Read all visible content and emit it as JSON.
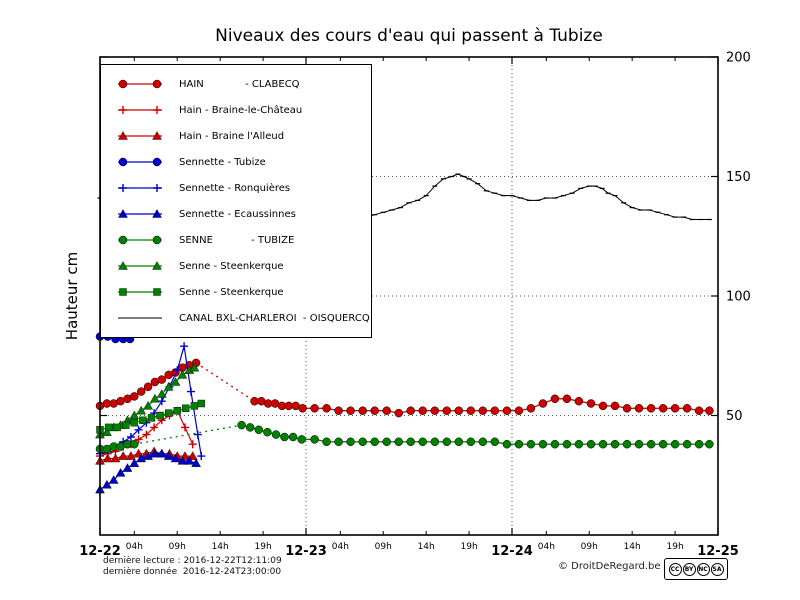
{
  "title": "Niveaux des cours d'eau qui passent à Tubize",
  "ylabel": "Hauteur cm",
  "footer": {
    "last_read": "dernière lecture : 2016-12-22T12:11:09",
    "last_data": "dernière donnée  2016-12-24T23:00:00",
    "copyright": "© DroitDeRegard.be",
    "license": {
      "name": "CC BY-NC-SA",
      "icons": [
        "CC",
        "BY",
        "NC",
        "SA"
      ]
    }
  },
  "chart_data": {
    "type": "line",
    "title": "Niveaux des cours d'eau qui passent à Tubize",
    "xlabel": "",
    "ylabel": "Hauteur cm",
    "ylim": [
      0,
      200
    ],
    "yticks": [
      50,
      100,
      150,
      200
    ],
    "xlim_hours": [
      0,
      72
    ],
    "grid": {
      "h_dotted": [
        50,
        100,
        150
      ],
      "v_dotted": [
        24,
        48
      ]
    },
    "legend_position": "upper-left",
    "day_ticks": [
      {
        "t": 0,
        "label": "12-22"
      },
      {
        "t": 24,
        "label": "12-23"
      },
      {
        "t": 48,
        "label": "12-24"
      },
      {
        "t": 72,
        "label": "12-25"
      }
    ],
    "hour_ticks": [
      {
        "t": 4,
        "label": "04h"
      },
      {
        "t": 9,
        "label": "09h"
      },
      {
        "t": 14,
        "label": "14h"
      },
      {
        "t": 19,
        "label": "19h"
      },
      {
        "t": 28,
        "label": "04h"
      },
      {
        "t": 33,
        "label": "09h"
      },
      {
        "t": 38,
        "label": "14h"
      },
      {
        "t": 43,
        "label": "19h"
      },
      {
        "t": 52,
        "label": "04h"
      },
      {
        "t": 57,
        "label": "09h"
      },
      {
        "t": 62,
        "label": "14h"
      },
      {
        "t": 67,
        "label": "19h"
      }
    ],
    "series": [
      {
        "name": "hain-clabecq",
        "label": "HAIN             - CLABECQ",
        "color": "#cc0000",
        "marker": "circle",
        "line_width": 1.3,
        "dotted_ranges": [
          [
            11.2,
            18
          ]
        ],
        "points": [
          [
            0,
            54
          ],
          [
            0.8,
            55
          ],
          [
            1.6,
            55
          ],
          [
            2.4,
            56
          ],
          [
            3.2,
            57
          ],
          [
            4,
            58
          ],
          [
            4.8,
            60
          ],
          [
            5.6,
            62
          ],
          [
            6.4,
            64
          ],
          [
            7.2,
            65
          ],
          [
            8,
            67
          ],
          [
            8.8,
            68
          ],
          [
            9.6,
            70
          ],
          [
            10.4,
            71
          ],
          [
            11.2,
            72
          ],
          [
            18,
            56
          ],
          [
            18.8,
            56
          ],
          [
            19.6,
            55
          ],
          [
            20.4,
            55
          ],
          [
            21.2,
            54
          ],
          [
            22,
            54
          ],
          [
            22.8,
            54
          ],
          [
            23.6,
            53
          ],
          [
            25,
            53
          ],
          [
            26.4,
            53
          ],
          [
            27.8,
            52
          ],
          [
            29.2,
            52
          ],
          [
            30.6,
            52
          ],
          [
            32,
            52
          ],
          [
            33.4,
            52
          ],
          [
            34.8,
            51
          ],
          [
            36.2,
            52
          ],
          [
            37.6,
            52
          ],
          [
            39,
            52
          ],
          [
            40.4,
            52
          ],
          [
            41.8,
            52
          ],
          [
            43.2,
            52
          ],
          [
            44.6,
            52
          ],
          [
            46,
            52
          ],
          [
            47.4,
            52
          ],
          [
            48.8,
            52
          ],
          [
            50.2,
            53
          ],
          [
            51.6,
            55
          ],
          [
            53,
            57
          ],
          [
            54.4,
            57
          ],
          [
            55.8,
            56
          ],
          [
            57.2,
            55
          ],
          [
            58.6,
            54
          ],
          [
            60,
            54
          ],
          [
            61.4,
            53
          ],
          [
            62.8,
            53
          ],
          [
            64.2,
            53
          ],
          [
            65.6,
            53
          ],
          [
            67,
            53
          ],
          [
            68.4,
            53
          ],
          [
            69.8,
            52
          ],
          [
            71,
            52
          ]
        ]
      },
      {
        "name": "hain-braine-le-chateau",
        "label": "Hain - Braine-le-Château",
        "color": "#cc0000",
        "marker": "plus",
        "line_width": 1.2,
        "points": [
          [
            0,
            33
          ],
          [
            0.9,
            34
          ],
          [
            1.8,
            35
          ],
          [
            2.7,
            37
          ],
          [
            3.6,
            38
          ],
          [
            4.5,
            40
          ],
          [
            5.4,
            42
          ],
          [
            6.3,
            45
          ],
          [
            7.2,
            48
          ],
          [
            8.1,
            50
          ],
          [
            9,
            52
          ],
          [
            9.9,
            45
          ],
          [
            10.8,
            38
          ]
        ]
      },
      {
        "name": "hain-braine-l-alleud",
        "label": "Hain - Braine l'Alleud",
        "color": "#cc0000",
        "marker": "triangle",
        "line_width": 1.2,
        "points": [
          [
            0,
            31
          ],
          [
            0.9,
            32
          ],
          [
            1.8,
            32
          ],
          [
            2.7,
            33
          ],
          [
            3.6,
            33
          ],
          [
            4.5,
            34
          ],
          [
            5.4,
            34
          ],
          [
            6.3,
            35
          ],
          [
            7.2,
            34
          ],
          [
            8.1,
            34
          ],
          [
            9,
            33
          ],
          [
            9.9,
            33
          ],
          [
            10.8,
            33
          ]
        ]
      },
      {
        "name": "sennette-tubize",
        "label": "Sennette - Tubize",
        "color": "#0000cc",
        "marker": "circle",
        "line_width": 1.3,
        "points": [
          [
            0,
            83
          ],
          [
            0.9,
            83
          ],
          [
            1.8,
            82
          ],
          [
            2.7,
            82
          ],
          [
            3.5,
            82
          ]
        ]
      },
      {
        "name": "sennette-ronquieres",
        "label": "Sennette - Ronquières",
        "color": "#0000cc",
        "marker": "plus",
        "line_width": 1.2,
        "points": [
          [
            0,
            34
          ],
          [
            0.9,
            35
          ],
          [
            1.8,
            37
          ],
          [
            2.7,
            39
          ],
          [
            3.6,
            41
          ],
          [
            4.5,
            44
          ],
          [
            5.4,
            47
          ],
          [
            6.3,
            51
          ],
          [
            7.2,
            56
          ],
          [
            8.1,
            62
          ],
          [
            9,
            69
          ],
          [
            9.8,
            79
          ],
          [
            10.6,
            60
          ],
          [
            11.4,
            42
          ],
          [
            11.8,
            33
          ]
        ]
      },
      {
        "name": "sennette-ecaussinnes",
        "label": "Sennette - Ecaussinnes",
        "color": "#0000cc",
        "marker": "triangle",
        "line_width": 1.2,
        "points": [
          [
            0,
            19
          ],
          [
            0.8,
            21
          ],
          [
            1.6,
            23
          ],
          [
            2.4,
            26
          ],
          [
            3.2,
            28
          ],
          [
            4,
            30
          ],
          [
            4.8,
            32
          ],
          [
            5.6,
            33
          ],
          [
            6.4,
            34
          ],
          [
            7.2,
            34
          ],
          [
            8,
            33
          ],
          [
            8.8,
            32
          ],
          [
            9.6,
            31
          ],
          [
            10.4,
            31
          ],
          [
            11.2,
            30
          ]
        ]
      },
      {
        "name": "senne-tubize",
        "label": "SENNE            - TUBIZE",
        "color": "#008000",
        "marker": "circle",
        "line_width": 1.3,
        "dotted_ranges": [
          [
            4,
            16.5
          ]
        ],
        "points": [
          [
            0,
            36
          ],
          [
            0.8,
            36
          ],
          [
            1.6,
            37
          ],
          [
            2.4,
            37
          ],
          [
            3.2,
            38
          ],
          [
            4,
            38
          ],
          [
            16.5,
            46
          ],
          [
            17.5,
            45
          ],
          [
            18.5,
            44
          ],
          [
            19.5,
            43
          ],
          [
            20.5,
            42
          ],
          [
            21.5,
            41
          ],
          [
            22.5,
            41
          ],
          [
            23.5,
            40
          ],
          [
            25,
            40
          ],
          [
            26.4,
            39
          ],
          [
            27.8,
            39
          ],
          [
            29.2,
            39
          ],
          [
            30.6,
            39
          ],
          [
            32,
            39
          ],
          [
            33.4,
            39
          ],
          [
            34.8,
            39
          ],
          [
            36.2,
            39
          ],
          [
            37.6,
            39
          ],
          [
            39,
            39
          ],
          [
            40.4,
            39
          ],
          [
            41.8,
            39
          ],
          [
            43.2,
            39
          ],
          [
            44.6,
            39
          ],
          [
            46,
            39
          ],
          [
            47.4,
            38
          ],
          [
            48.8,
            38
          ],
          [
            50.2,
            38
          ],
          [
            51.6,
            38
          ],
          [
            53,
            38
          ],
          [
            54.4,
            38
          ],
          [
            55.8,
            38
          ],
          [
            57.2,
            38
          ],
          [
            58.6,
            38
          ],
          [
            60,
            38
          ],
          [
            61.4,
            38
          ],
          [
            62.8,
            38
          ],
          [
            64.2,
            38
          ],
          [
            65.6,
            38
          ],
          [
            67,
            38
          ],
          [
            68.4,
            38
          ],
          [
            69.8,
            38
          ],
          [
            71,
            38
          ]
        ]
      },
      {
        "name": "senne-steenkerque-triangle",
        "label": "Senne - Steenkerque",
        "color": "#008000",
        "marker": "triangle",
        "line_width": 1.2,
        "points": [
          [
            0,
            42
          ],
          [
            0.8,
            43
          ],
          [
            1.6,
            45
          ],
          [
            2.4,
            46
          ],
          [
            3.2,
            48
          ],
          [
            4,
            50
          ],
          [
            4.8,
            52
          ],
          [
            5.6,
            54
          ],
          [
            6.4,
            57
          ],
          [
            7.2,
            59
          ],
          [
            8,
            62
          ],
          [
            8.8,
            64
          ],
          [
            9.6,
            67
          ],
          [
            10.4,
            69
          ],
          [
            11,
            70
          ]
        ]
      },
      {
        "name": "senne-steenkerque-square",
        "label": "Senne - Steenkerque",
        "color": "#008000",
        "marker": "square",
        "line_width": 1.2,
        "points": [
          [
            0,
            44
          ],
          [
            1,
            45
          ],
          [
            2,
            45
          ],
          [
            3,
            46
          ],
          [
            4,
            47
          ],
          [
            5,
            48
          ],
          [
            6,
            49
          ],
          [
            7,
            50
          ],
          [
            8,
            51
          ],
          [
            9,
            52
          ],
          [
            10,
            53
          ],
          [
            11,
            54
          ],
          [
            11.8,
            55
          ]
        ]
      },
      {
        "name": "canal-bxl-charleroi-oisquercq",
        "label": "CANAL BXL-CHARLEROI  - OISQUERCQ",
        "color": "#000000",
        "marker": "dash",
        "line_width": 1,
        "points": [
          [
            0,
            141
          ],
          [
            0.7,
            139
          ],
          [
            31,
            133
          ],
          [
            32,
            134
          ],
          [
            33,
            135
          ],
          [
            34,
            136
          ],
          [
            35,
            137
          ],
          [
            36,
            139
          ],
          [
            37,
            140
          ],
          [
            38,
            142
          ],
          [
            39,
            146
          ],
          [
            40,
            149
          ],
          [
            41,
            150
          ],
          [
            41.7,
            151
          ],
          [
            42.4,
            150
          ],
          [
            43,
            149
          ],
          [
            44,
            147
          ],
          [
            45,
            144
          ],
          [
            46,
            143
          ],
          [
            47,
            142
          ],
          [
            48,
            142
          ],
          [
            49,
            141
          ],
          [
            50,
            140
          ],
          [
            51,
            140
          ],
          [
            52,
            141
          ],
          [
            53,
            141
          ],
          [
            54,
            142
          ],
          [
            55,
            143
          ],
          [
            56,
            145
          ],
          [
            57,
            146
          ],
          [
            57.7,
            146
          ],
          [
            58.5,
            145
          ],
          [
            59.2,
            143
          ],
          [
            60,
            142
          ],
          [
            61,
            139
          ],
          [
            62,
            137
          ],
          [
            63,
            136
          ],
          [
            64,
            136
          ],
          [
            65,
            135
          ],
          [
            66,
            134
          ],
          [
            67,
            133
          ],
          [
            68,
            133
          ],
          [
            69,
            132
          ],
          [
            70,
            132
          ],
          [
            71,
            132
          ]
        ]
      }
    ]
  }
}
